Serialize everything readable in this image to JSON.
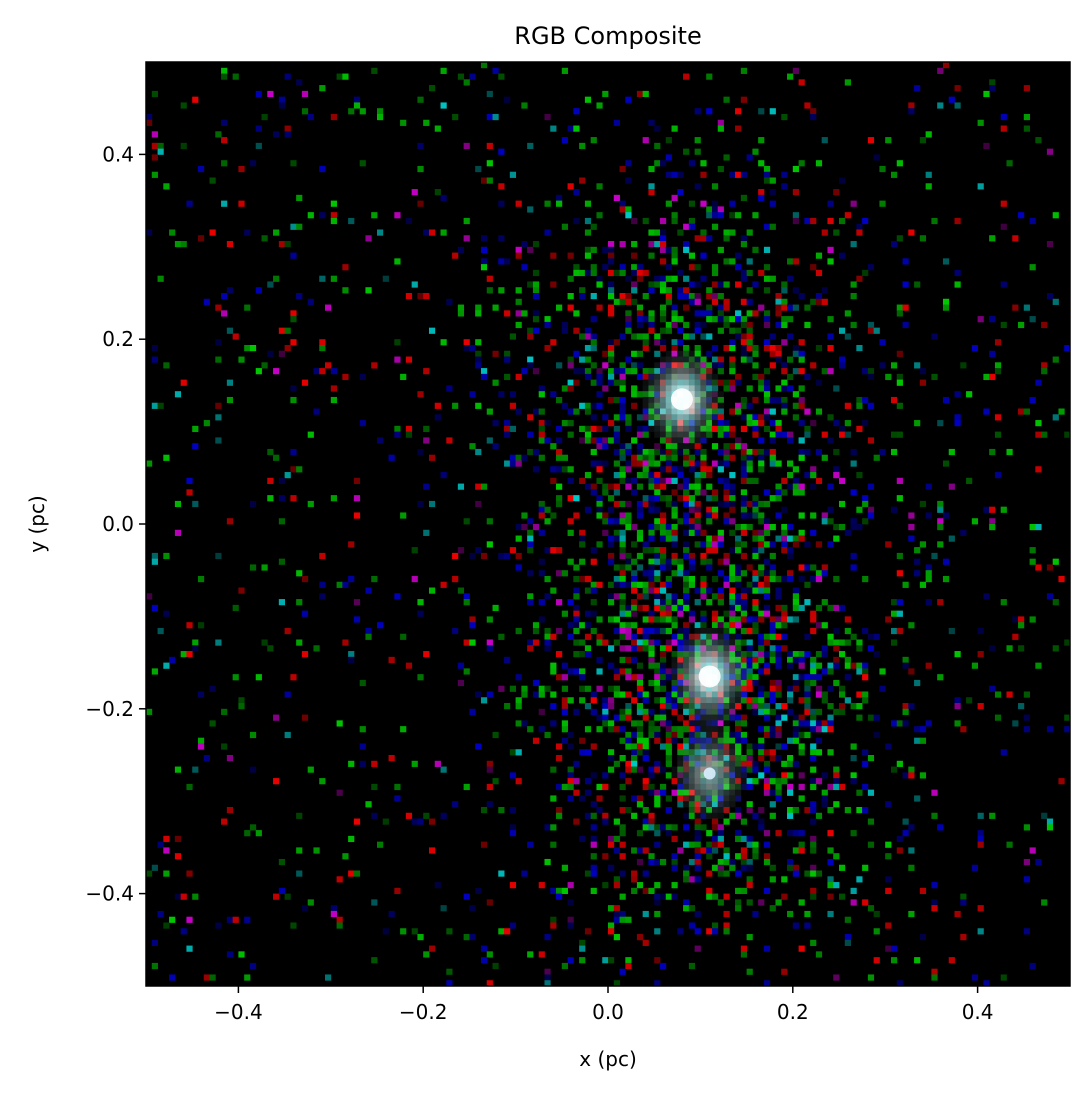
{
  "chart_data": {
    "type": "heatmap",
    "title": "RGB Composite",
    "xlabel": "x (pc)",
    "ylabel": "y (pc)",
    "xlim": [
      -0.5,
      0.5
    ],
    "ylim": [
      -0.5,
      0.5
    ],
    "xticks": [
      {
        "value": -0.4,
        "label": "−0.4"
      },
      {
        "value": -0.2,
        "label": "−0.2"
      },
      {
        "value": 0.0,
        "label": "0.0"
      },
      {
        "value": 0.2,
        "label": "0.2"
      },
      {
        "value": 0.4,
        "label": "0.4"
      }
    ],
    "yticks": [
      {
        "value": 0.4,
        "label": "0.4"
      },
      {
        "value": 0.2,
        "label": "0.2"
      },
      {
        "value": 0.0,
        "label": "0.0"
      },
      {
        "value": -0.2,
        "label": "−0.2"
      },
      {
        "value": -0.4,
        "label": "−0.4"
      }
    ],
    "grid": false,
    "background_color": "#000000",
    "channels": [
      "red",
      "green",
      "blue"
    ],
    "bright_sources": [
      {
        "x": 0.08,
        "y": 0.135,
        "color": "#ffffff"
      },
      {
        "x": 0.11,
        "y": -0.165,
        "color": "#ffffff"
      },
      {
        "x": 0.11,
        "y": -0.27,
        "color": "#dcf0ff"
      }
    ]
  }
}
